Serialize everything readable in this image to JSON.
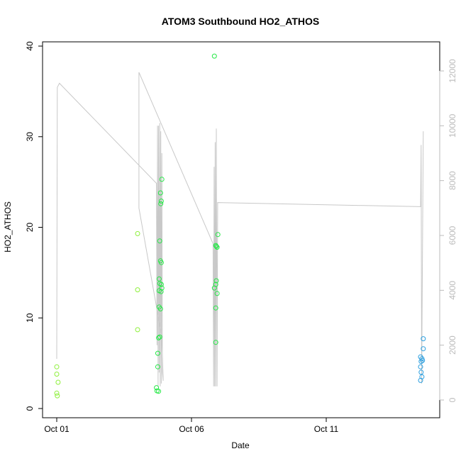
{
  "chart_data": {
    "type": "scatter",
    "title": "ATOM3 Southbound HO2_ATHOS",
    "xlabel": "Date",
    "ylabel": "HO2_ATHOS",
    "xlim": [
      0.0,
      14.6
    ],
    "ylim": [
      0,
      40
    ],
    "y2lim": [
      0,
      12000
    ],
    "grid": false,
    "x_ticks": [
      {
        "value": 0,
        "label": "Oct 01"
      },
      {
        "value": 5,
        "label": "Oct 06"
      },
      {
        "value": 10,
        "label": "Oct 11"
      }
    ],
    "y_ticks": [
      0,
      10,
      20,
      30,
      40
    ],
    "y2_ticks": [
      0,
      2000,
      4000,
      6000,
      8000,
      10000,
      12000
    ],
    "colors": {
      "axis": "#000000",
      "right_axis": "#bbbbbb",
      "line": "#c8c8c8",
      "early": "#8ef03c",
      "middle": "#26e847",
      "late": "#2a9fe0"
    },
    "series": [
      {
        "color": "#8ef03c",
        "points": [
          {
            "x": 0.0,
            "y": 4.6
          },
          {
            "x": 0.0,
            "y": 3.8
          },
          {
            "x": 0.05,
            "y": 2.9
          },
          {
            "x": 0.0,
            "y": 1.7
          },
          {
            "x": 0.02,
            "y": 1.4
          },
          {
            "x": 3.0,
            "y": 19.3
          },
          {
            "x": 3.0,
            "y": 13.1
          },
          {
            "x": 3.0,
            "y": 8.7
          }
        ]
      },
      {
        "color": "#26e847",
        "points": [
          {
            "x": 3.75,
            "y": 6.1
          },
          {
            "x": 3.75,
            "y": 4.6
          },
          {
            "x": 3.7,
            "y": 2.3
          },
          {
            "x": 3.72,
            "y": 1.95
          },
          {
            "x": 3.78,
            "y": 1.9
          },
          {
            "x": 3.8,
            "y": 11.2
          },
          {
            "x": 3.85,
            "y": 11.0
          },
          {
            "x": 3.78,
            "y": 7.8
          },
          {
            "x": 3.82,
            "y": 7.9
          },
          {
            "x": 3.8,
            "y": 14.3
          },
          {
            "x": 3.82,
            "y": 13.8
          },
          {
            "x": 3.88,
            "y": 13.7
          },
          {
            "x": 3.9,
            "y": 13.3
          },
          {
            "x": 3.8,
            "y": 13.0
          },
          {
            "x": 3.87,
            "y": 12.9
          },
          {
            "x": 3.82,
            "y": 18.5
          },
          {
            "x": 3.85,
            "y": 16.3
          },
          {
            "x": 3.88,
            "y": 16.1
          },
          {
            "x": 3.9,
            "y": 25.3
          },
          {
            "x": 3.85,
            "y": 23.8
          },
          {
            "x": 3.88,
            "y": 22.9
          },
          {
            "x": 3.86,
            "y": 22.6
          },
          {
            "x": 5.85,
            "y": 38.9
          },
          {
            "x": 5.85,
            "y": 13.3
          },
          {
            "x": 5.9,
            "y": 13.7
          },
          {
            "x": 5.92,
            "y": 14.1
          },
          {
            "x": 5.95,
            "y": 12.7
          },
          {
            "x": 5.9,
            "y": 11.1
          },
          {
            "x": 5.9,
            "y": 7.3
          },
          {
            "x": 5.9,
            "y": 18.0
          },
          {
            "x": 5.95,
            "y": 17.8
          },
          {
            "x": 5.92,
            "y": 17.9
          },
          {
            "x": 5.98,
            "y": 19.2
          }
        ]
      },
      {
        "color": "#2a9fe0",
        "points": [
          {
            "x": 13.6,
            "y": 7.7
          },
          {
            "x": 13.6,
            "y": 6.6
          },
          {
            "x": 13.5,
            "y": 5.7
          },
          {
            "x": 13.52,
            "y": 5.2
          },
          {
            "x": 13.57,
            "y": 5.3
          },
          {
            "x": 13.55,
            "y": 5.5
          },
          {
            "x": 13.5,
            "y": 4.6
          },
          {
            "x": 13.52,
            "y": 4.0
          },
          {
            "x": 13.55,
            "y": 3.5
          },
          {
            "x": 13.5,
            "y": 3.1
          }
        ]
      }
    ],
    "line_y2": [
      {
        "x": 0.0,
        "y2": 1500
      },
      {
        "x": 0.02,
        "y2": 11400
      },
      {
        "x": 0.1,
        "y2": 11550
      },
      {
        "x": 3.7,
        "y2": 7900
      },
      {
        "x": 3.72,
        "y2": 2000
      },
      {
        "x": 3.74,
        "y2": 10000
      },
      {
        "x": 3.76,
        "y2": 500
      },
      {
        "x": 3.78,
        "y2": 10000
      },
      {
        "x": 3.8,
        "y2": 1000
      },
      {
        "x": 3.82,
        "y2": 10100
      },
      {
        "x": 3.84,
        "y2": 500
      },
      {
        "x": 3.86,
        "y2": 9800
      },
      {
        "x": 3.88,
        "y2": 600
      },
      {
        "x": 3.9,
        "y2": 9000
      },
      {
        "x": 3.92,
        "y2": 1000
      },
      {
        "x": 3.95,
        "y2": 700
      },
      {
        "x": 3.9,
        "y2": 2300
      },
      {
        "x": 3.05,
        "y2": 7000
      },
      {
        "x": 3.05,
        "y2": 11950
      },
      {
        "x": 5.8,
        "y2": 5700
      },
      {
        "x": 5.82,
        "y2": 500
      },
      {
        "x": 5.84,
        "y2": 8500
      },
      {
        "x": 5.86,
        "y2": 500
      },
      {
        "x": 5.88,
        "y2": 9400
      },
      {
        "x": 5.9,
        "y2": 500
      },
      {
        "x": 5.92,
        "y2": 9900
      },
      {
        "x": 5.95,
        "y2": 500
      },
      {
        "x": 5.97,
        "y2": 7200
      },
      {
        "x": 13.5,
        "y2": 7050
      },
      {
        "x": 13.52,
        "y2": 9300
      },
      {
        "x": 13.54,
        "y2": 600
      },
      {
        "x": 13.6,
        "y2": 9800
      }
    ]
  }
}
